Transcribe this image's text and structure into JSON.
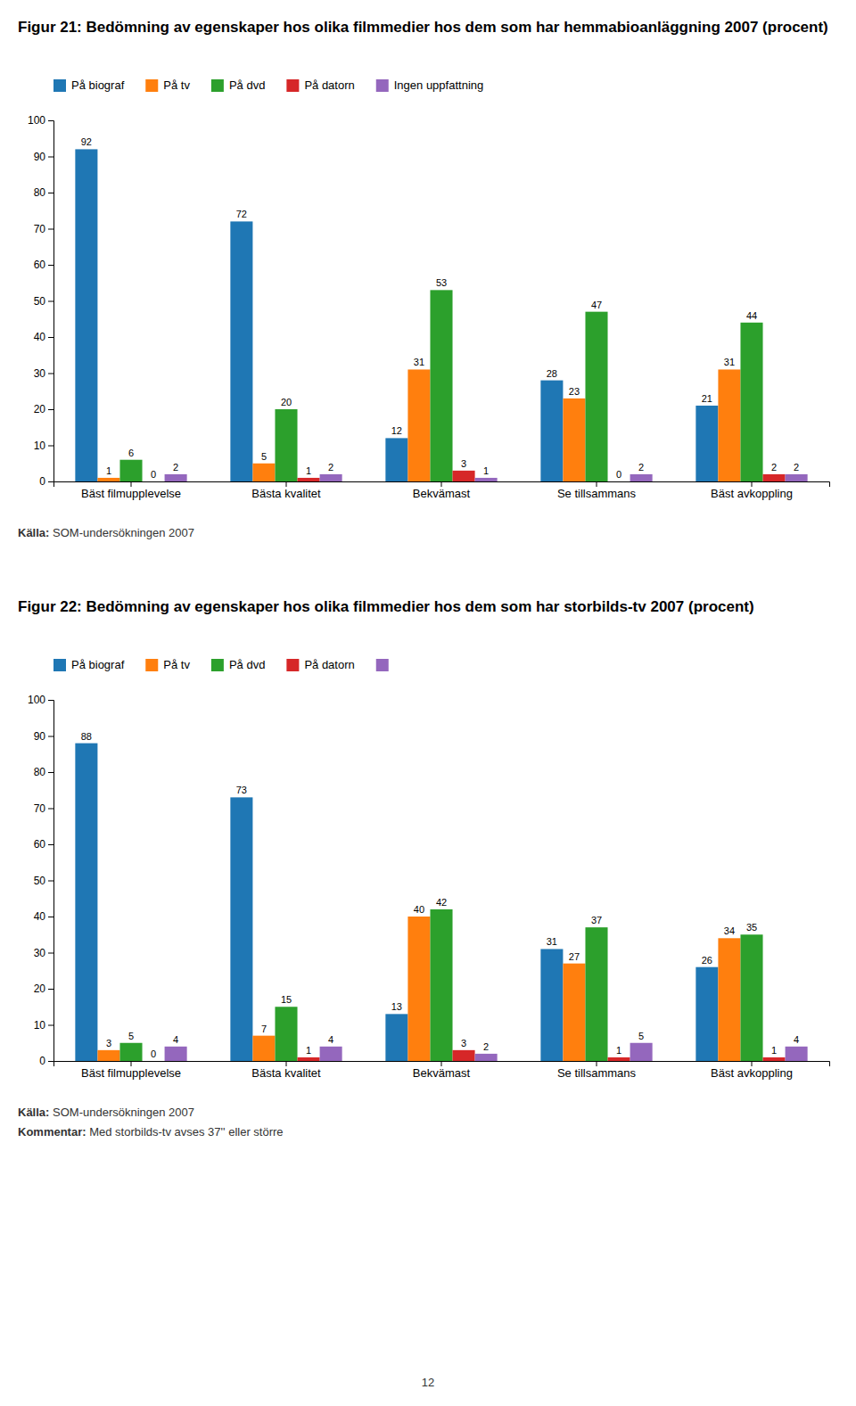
{
  "chart_data": [
    {
      "type": "bar",
      "title": "Figur 21: Bedömning av egenskaper hos olika filmmedier hos dem som har hemmabioanläggning 2007 (procent)",
      "categories": [
        "Bäst filmupplevelse",
        "Bästa kvalitet",
        "Bekvämast",
        "Se tillsammans",
        "Bäst avkoppling"
      ],
      "series": [
        {
          "name": "På biograf",
          "values": [
            92,
            72,
            12,
            28,
            21
          ]
        },
        {
          "name": "På tv",
          "values": [
            1,
            5,
            31,
            23,
            31
          ]
        },
        {
          "name": "På dvd",
          "values": [
            6,
            20,
            53,
            47,
            44
          ]
        },
        {
          "name": "På datorn",
          "values": [
            0,
            1,
            3,
            0,
            2
          ]
        },
        {
          "name": "Ingen uppfattning",
          "values": [
            2,
            2,
            1,
            2,
            2
          ]
        }
      ],
      "ylim": [
        0,
        100
      ],
      "yticks": [
        0,
        10,
        20,
        30,
        40,
        50,
        60,
        70,
        80,
        90,
        100
      ],
      "grid": false,
      "data_labels": true,
      "annotations": [
        "Källa: SOM-undersökningen 2007"
      ]
    },
    {
      "type": "bar",
      "title": "Figur 22: Bedömning av egenskaper hos olika filmmedier hos dem som har storbilds-tv 2007 (procent)",
      "categories": [
        "Bäst filmupplevelse",
        "Bästa kvalitet",
        "Bekvämast",
        "Se tillsammans",
        "Bäst avkoppling"
      ],
      "series": [
        {
          "name": "På biograf",
          "values": [
            88,
            73,
            13,
            31,
            26
          ]
        },
        {
          "name": "På tv",
          "values": [
            3,
            7,
            40,
            27,
            34
          ]
        },
        {
          "name": "På dvd",
          "values": [
            5,
            15,
            42,
            37,
            35
          ]
        },
        {
          "name": "På datorn",
          "values": [
            0,
            1,
            3,
            1,
            1
          ]
        },
        {
          "name": null,
          "values": [
            4,
            4,
            2,
            5,
            4
          ]
        }
      ],
      "ylim": [
        0,
        100
      ],
      "yticks": [
        0,
        10,
        20,
        30,
        40,
        50,
        60,
        70,
        80,
        90,
        100
      ],
      "grid": false,
      "data_labels": true,
      "annotations": [
        "Källa: SOM-undersökningen 2007",
        "Kommentar: Med storbilds-tv avses 37'' eller större"
      ]
    }
  ],
  "annotations": [
    "12"
  ]
}
